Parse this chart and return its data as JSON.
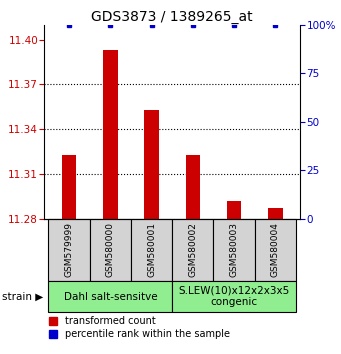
{
  "title": "GDS3873 / 1389265_at",
  "samples": [
    "GSM579999",
    "GSM580000",
    "GSM580001",
    "GSM580002",
    "GSM580003",
    "GSM580004"
  ],
  "red_values": [
    11.323,
    11.393,
    11.353,
    11.323,
    11.292,
    11.287
  ],
  "blue_values": [
    100,
    100,
    100,
    100,
    100,
    100
  ],
  "ylim_left": [
    11.28,
    11.41
  ],
  "ylim_right": [
    0,
    100
  ],
  "yticks_left": [
    11.28,
    11.31,
    11.34,
    11.37,
    11.4
  ],
  "yticks_right": [
    0,
    25,
    50,
    75,
    100
  ],
  "group1_label": "Dahl salt-sensitve",
  "group2_label": "S.LEW(10)x12x2x3x5\ncongenic",
  "group_color": "#90EE90",
  "sample_box_color": "#D3D3D3",
  "bar_color": "#CC0000",
  "dot_color": "#0000CC",
  "bar_width": 0.35,
  "legend_red_label": "transformed count",
  "legend_blue_label": "percentile rank within the sample",
  "strain_label": "strain",
  "ylabel_left_color": "#CC0000",
  "ylabel_right_color": "#0000CC",
  "title_fontsize": 10,
  "tick_fontsize": 7.5,
  "sample_fontsize": 6.5,
  "group_fontsize": 7.5,
  "legend_fontsize": 7
}
